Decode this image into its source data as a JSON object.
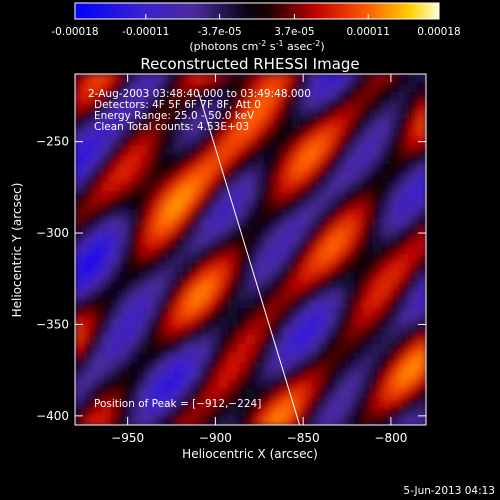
{
  "colorbar": {
    "tick_labels": [
      "-0.00018",
      "-0.00011",
      "-3.7e-05",
      "3.7e-05",
      "0.00011",
      "0.00018"
    ],
    "tick_values": [
      -0.00018,
      -0.00011,
      -3.7e-05,
      3.7e-05,
      0.00011,
      0.00018
    ],
    "range": [
      -0.00018,
      0.00018
    ],
    "stops": [
      {
        "t": 0.0,
        "color": "#0000ff"
      },
      {
        "t": 0.18,
        "color": "#3a1fd0"
      },
      {
        "t": 0.33,
        "color": "#4a2a9a"
      },
      {
        "t": 0.47,
        "color": "#0a0418"
      },
      {
        "t": 0.53,
        "color": "#1a0000"
      },
      {
        "t": 0.66,
        "color": "#c00000"
      },
      {
        "t": 0.8,
        "color": "#ff5a00"
      },
      {
        "t": 0.92,
        "color": "#ffd000"
      },
      {
        "t": 1.0,
        "color": "#ffffd0"
      }
    ]
  },
  "chart_data": {
    "type": "heatmap",
    "title": "Reconstructed RHESSI Image",
    "xlabel": "Heliocentric X (arcsec)",
    "ylabel": "Heliocentric Y (arcsec)",
    "xlim": [
      -980,
      -780
    ],
    "ylim": [
      -405,
      -213
    ],
    "x_ticks": [
      -950,
      -900,
      -850,
      -800
    ],
    "y_ticks": [
      -250,
      -300,
      -350,
      -400
    ],
    "x_tick_labels": [
      "−950",
      "−900",
      "−850",
      "−800"
    ],
    "y_tick_labels": [
      "−250",
      "−300",
      "−350",
      "−400"
    ],
    "annotations": {
      "time_range": "2-Aug-2003 03:48:40.000 to 03:49:48.000",
      "detectors": "Detectors: 4F 5F 6F 7F 8F, Att 0",
      "energy": "Energy Range: 25.0 - 50.0 keV",
      "clean": "Clean     Total counts: 4.53E+03",
      "peak": "Position of Peak = [−912,−224]"
    },
    "limb_line": {
      "x": [
        -910,
        -852
      ],
      "y": [
        -222,
        -405
      ]
    },
    "colorbar_units": "(photons cm",
    "units_sup1": "-2",
    "units_mid": " s",
    "units_sup2": "-1",
    "units_mid2": " asec",
    "units_sup3": "-2",
    "units_end": ")"
  },
  "footer": {
    "date": "5-Jun-2013 04:13"
  }
}
